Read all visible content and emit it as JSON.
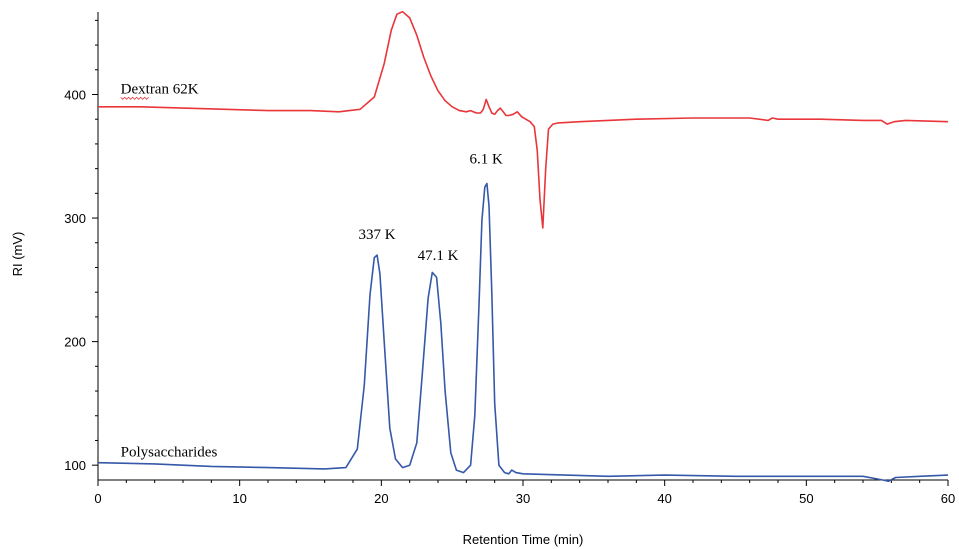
{
  "chart_data": {
    "type": "line",
    "xlabel": "Retention Time (min)",
    "ylabel": "RI (mV)",
    "xlim": [
      0,
      60
    ],
    "ylim": [
      88,
      470
    ],
    "xticks": [
      0,
      10,
      20,
      30,
      40,
      50,
      60
    ],
    "yticks": [
      100,
      200,
      300,
      400
    ],
    "grid": false,
    "legend": "none",
    "series": [
      {
        "name": "Dextran 62K",
        "color": "#e8363a",
        "x": [
          0,
          3,
          6,
          9,
          12,
          15,
          17,
          18.5,
          19.5,
          20.2,
          20.7,
          21.1,
          21.5,
          22,
          22.5,
          23,
          23.5,
          24,
          24.5,
          25,
          25.5,
          26,
          26.3,
          26.7,
          27,
          27.2,
          27.4,
          27.6,
          27.8,
          28,
          28.2,
          28.4,
          28.6,
          28.8,
          29,
          29.3,
          29.6,
          29.9,
          30.2,
          30.5,
          30.8,
          31.0,
          31.2,
          31.4,
          31.6,
          31.8,
          32.1,
          32.5,
          34,
          38,
          42,
          46,
          47.3,
          47.6,
          48,
          51,
          54,
          55.3,
          55.7,
          56.2,
          57,
          60
        ],
        "values": [
          390,
          390,
          389,
          388,
          387,
          387,
          386,
          388,
          398,
          425,
          452,
          465,
          467,
          462,
          448,
          430,
          415,
          403,
          395,
          390,
          387,
          386,
          387,
          385,
          385,
          388,
          396,
          390,
          385,
          384,
          387,
          389,
          386,
          383,
          383,
          384,
          386,
          382,
          380,
          378,
          374,
          355,
          315,
          292,
          340,
          372,
          376,
          377,
          378,
          380,
          381,
          381,
          379,
          381,
          380,
          380,
          379,
          379,
          376,
          378,
          379,
          378
        ]
      },
      {
        "name": "Polysaccharides",
        "color": "#3558a8",
        "x": [
          0,
          4,
          8,
          12,
          16,
          17.5,
          18.3,
          18.8,
          19.2,
          19.5,
          19.7,
          19.9,
          20.2,
          20.6,
          21.0,
          21.5,
          22.0,
          22.5,
          22.9,
          23.3,
          23.6,
          23.9,
          24.2,
          24.5,
          24.9,
          25.3,
          25.8,
          26.3,
          26.6,
          26.9,
          27.1,
          27.3,
          27.45,
          27.6,
          27.8,
          28.0,
          28.3,
          28.7,
          29.0,
          29.2,
          29.5,
          30,
          33,
          36,
          40,
          45,
          50,
          54,
          55.4,
          55.8,
          56.3,
          58,
          60
        ],
        "values": [
          102,
          101,
          99,
          98,
          97,
          98,
          113,
          165,
          238,
          268,
          270,
          255,
          200,
          130,
          105,
          98,
          100,
          118,
          175,
          235,
          256,
          252,
          215,
          160,
          110,
          96,
          94,
          100,
          140,
          232,
          298,
          325,
          328,
          310,
          240,
          150,
          100,
          94,
          93,
          96,
          94,
          93,
          92,
          91,
          92,
          91,
          91,
          91,
          88,
          87,
          90,
          91,
          92
        ]
      }
    ],
    "annotations": [
      {
        "text": "337 K",
        "x": 19.7,
        "y": 283
      },
      {
        "text": "47.1 K",
        "x": 24.0,
        "y": 266
      },
      {
        "text": "6.1 K",
        "x": 27.4,
        "y": 344
      }
    ],
    "series_labels": [
      {
        "text": "Dextran 62K",
        "x": 1.6,
        "y": 401
      },
      {
        "text": "Polysaccharides",
        "x": 1.6,
        "y": 107
      }
    ]
  }
}
